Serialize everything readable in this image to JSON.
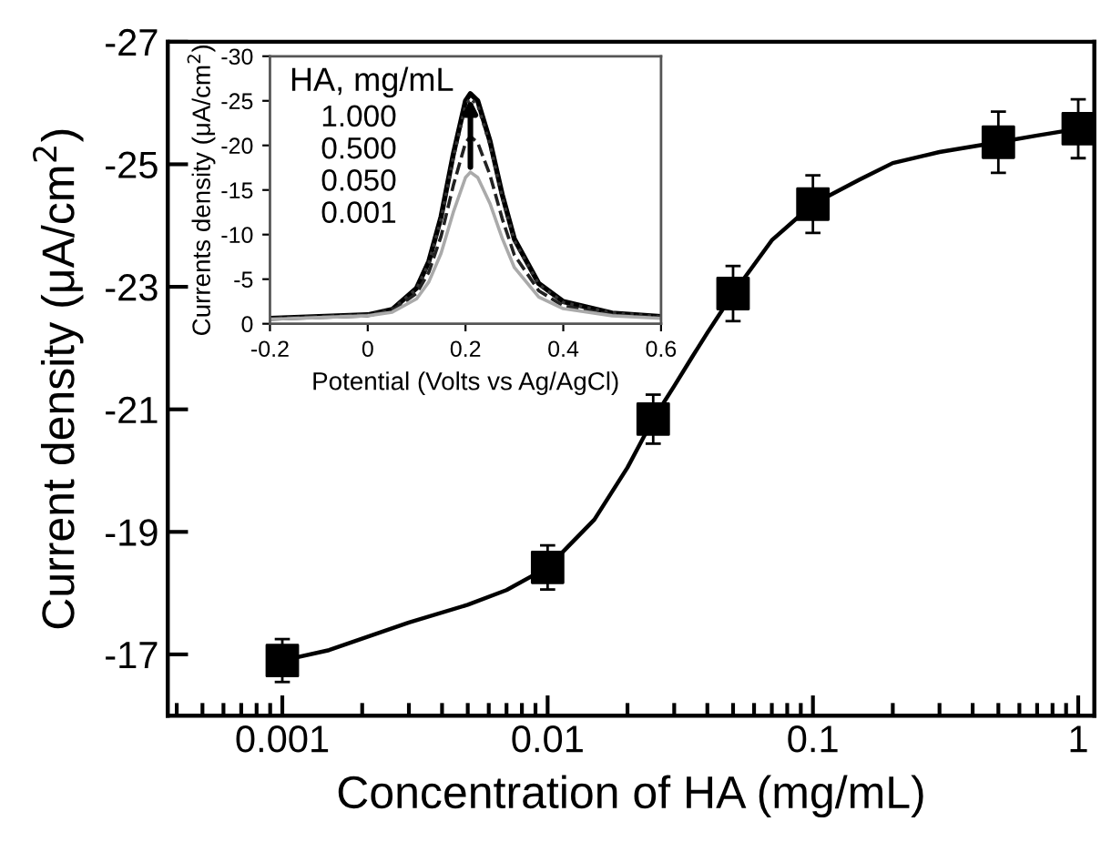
{
  "chart_data": [
    {
      "type": "scatter",
      "xlabel": "Concentration of HA (mg/mL)",
      "ylabel": "Current density (μA/cm$^{2}$)",
      "log": "x",
      "xlim": [
        0.00037,
        1.15
      ],
      "ylim": [
        -16,
        -27
      ],
      "xticks": [
        0.001,
        0.01,
        0.1,
        1
      ],
      "yticks": [
        -27,
        -25,
        -23,
        -21,
        -19,
        -17
      ],
      "grid": false,
      "legend": false,
      "series": [
        {
          "type": "scatter",
          "marker": "square",
          "color": "#000000",
          "x": [
            0.001,
            0.01,
            0.025,
            0.05,
            0.1,
            0.5,
            1
          ],
          "values": [
            -16.9,
            -18.42,
            -20.84,
            -22.89,
            -24.35,
            -25.36,
            -25.58
          ],
          "errors": [
            0.35,
            0.36,
            0.4,
            0.45,
            0.47,
            0.5,
            0.48
          ]
        },
        {
          "type": "line",
          "marker": "none",
          "line_style": "solid",
          "color": "#000000",
          "x": [
            0.001,
            0.0015,
            0.003,
            0.005,
            0.007,
            0.01,
            0.015,
            0.02,
            0.025,
            0.03,
            0.035,
            0.04,
            0.05,
            0.07,
            0.1,
            0.15,
            0.2,
            0.3,
            0.5,
            0.7,
            1
          ],
          "values": [
            -16.9,
            -17.07,
            -17.52,
            -17.81,
            -18.05,
            -18.42,
            -19.2,
            -20.05,
            -20.84,
            -21.38,
            -21.85,
            -22.25,
            -22.89,
            -23.76,
            -24.35,
            -24.75,
            -25.02,
            -25.2,
            -25.36,
            -25.47,
            -25.58
          ]
        }
      ]
    },
    {
      "type": "line",
      "xlabel": "Potential (Volts vs Ag/AgCl)",
      "ylabel": "Currents density (μA/cm$^{2}$)",
      "xlim": [
        -0.2,
        0.6
      ],
      "ylim": [
        0,
        -30
      ],
      "xticks": [
        -0.2,
        0,
        0.2,
        0.4,
        0.6
      ],
      "yticks": [
        0,
        -5,
        -10,
        -15,
        -20,
        -25,
        -30
      ],
      "grid": false,
      "legend": false,
      "annotations": [
        "HA, mg/mL",
        "1.000",
        "0.500",
        "0.050",
        "0.001"
      ],
      "x": [
        -0.2,
        -0.1,
        0,
        0.05,
        0.1,
        0.125,
        0.15,
        0.175,
        0.2,
        0.21,
        0.225,
        0.25,
        0.275,
        0.3,
        0.35,
        0.4,
        0.5,
        0.6
      ],
      "series": [
        {
          "color": "#000000",
          "line_style": "solid",
          "values": [
            -0.6,
            -0.8,
            -1.0,
            -1.6,
            -4.0,
            -7.0,
            -12.0,
            -19.0,
            -25.0,
            -25.8,
            -25.0,
            -20.5,
            -14.5,
            -9.5,
            -4.5,
            -2.5,
            -1.2,
            -0.8
          ]
        },
        {
          "color": "#333333",
          "line_style": "dotted",
          "values": [
            -0.6,
            -0.8,
            -1.0,
            -1.6,
            -3.9,
            -6.8,
            -11.7,
            -18.6,
            -24.5,
            -25.3,
            -24.5,
            -20.1,
            -14.2,
            -9.3,
            -4.4,
            -2.4,
            -1.2,
            -0.8
          ]
        },
        {
          "color": "#222222",
          "line_style": "dashed",
          "values": [
            -0.6,
            -0.8,
            -1.0,
            -1.5,
            -3.4,
            -5.8,
            -9.8,
            -15.5,
            -20.3,
            -21.0,
            -20.3,
            -16.7,
            -11.8,
            -7.7,
            -3.7,
            -2.0,
            -1.0,
            -0.7
          ]
        },
        {
          "color": "#aaaaaa",
          "line_style": "solid",
          "values": [
            -0.5,
            -0.7,
            -0.9,
            -1.3,
            -2.8,
            -4.7,
            -7.9,
            -12.5,
            -16.4,
            -17.0,
            -16.4,
            -13.5,
            -9.6,
            -6.3,
            -3.0,
            -1.7,
            -0.9,
            -0.6
          ]
        }
      ]
    }
  ]
}
